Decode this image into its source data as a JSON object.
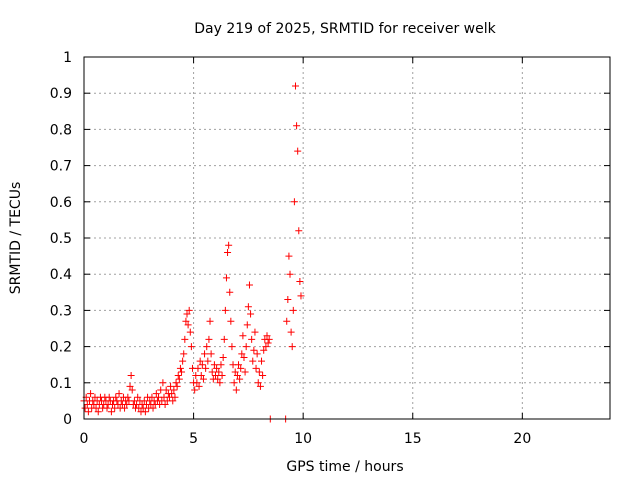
{
  "chart_data": {
    "type": "scatter",
    "title": "Day 219 of 2025, SRMTID for receiver welk",
    "xlabel": "GPS time / hours",
    "ylabel": "SRMTID / TECUs",
    "xlim": [
      0,
      24
    ],
    "ylim": [
      0,
      1
    ],
    "xticks": [
      "0",
      "5",
      "10",
      "15",
      "20"
    ],
    "yticks": [
      "0",
      "0.1",
      "0.2",
      "0.3",
      "0.4",
      "0.5",
      "0.6",
      "0.7",
      "0.8",
      "0.9",
      "1"
    ],
    "grid": true,
    "marker": "+",
    "colors": {
      "series": "#ff0000"
    },
    "series": [
      {
        "points": [
          [
            0.0,
            0.05
          ],
          [
            0.05,
            0.03
          ],
          [
            0.1,
            0.06
          ],
          [
            0.15,
            0.04
          ],
          [
            0.2,
            0.02
          ],
          [
            0.25,
            0.05
          ],
          [
            0.3,
            0.07
          ],
          [
            0.35,
            0.03
          ],
          [
            0.4,
            0.05
          ],
          [
            0.45,
            0.04
          ],
          [
            0.5,
            0.06
          ],
          [
            0.55,
            0.03
          ],
          [
            0.6,
            0.05
          ],
          [
            0.65,
            0.02
          ],
          [
            0.7,
            0.04
          ],
          [
            0.75,
            0.06
          ],
          [
            0.8,
            0.05
          ],
          [
            0.85,
            0.03
          ],
          [
            0.9,
            0.04
          ],
          [
            0.95,
            0.06
          ],
          [
            1.0,
            0.05
          ],
          [
            1.05,
            0.03
          ],
          [
            1.1,
            0.04
          ],
          [
            1.15,
            0.06
          ],
          [
            1.2,
            0.05
          ],
          [
            1.25,
            0.02
          ],
          [
            1.3,
            0.04
          ],
          [
            1.35,
            0.05
          ],
          [
            1.4,
            0.03
          ],
          [
            1.45,
            0.06
          ],
          [
            1.5,
            0.05
          ],
          [
            1.55,
            0.04
          ],
          [
            1.6,
            0.07
          ],
          [
            1.65,
            0.03
          ],
          [
            1.7,
            0.05
          ],
          [
            1.75,
            0.04
          ],
          [
            1.8,
            0.06
          ],
          [
            1.85,
            0.03
          ],
          [
            1.9,
            0.05
          ],
          [
            1.95,
            0.04
          ],
          [
            2.0,
            0.06
          ],
          [
            2.05,
            0.05
          ],
          [
            2.1,
            0.09
          ],
          [
            2.15,
            0.12
          ],
          [
            2.2,
            0.08
          ],
          [
            2.25,
            0.04
          ],
          [
            2.3,
            0.05
          ],
          [
            2.35,
            0.03
          ],
          [
            2.4,
            0.04
          ],
          [
            2.45,
            0.06
          ],
          [
            2.5,
            0.03
          ],
          [
            2.55,
            0.05
          ],
          [
            2.6,
            0.02
          ],
          [
            2.65,
            0.04
          ],
          [
            2.7,
            0.03
          ],
          [
            2.75,
            0.05
          ],
          [
            2.8,
            0.02
          ],
          [
            2.85,
            0.04
          ],
          [
            2.9,
            0.06
          ],
          [
            2.95,
            0.03
          ],
          [
            3.0,
            0.05
          ],
          [
            3.05,
            0.04
          ],
          [
            3.1,
            0.06
          ],
          [
            3.15,
            0.03
          ],
          [
            3.2,
            0.05
          ],
          [
            3.25,
            0.04
          ],
          [
            3.3,
            0.07
          ],
          [
            3.35,
            0.05
          ],
          [
            3.4,
            0.06
          ],
          [
            3.45,
            0.04
          ],
          [
            3.5,
            0.08
          ],
          [
            3.55,
            0.05
          ],
          [
            3.6,
            0.1
          ],
          [
            3.65,
            0.06
          ],
          [
            3.7,
            0.04
          ],
          [
            3.75,
            0.08
          ],
          [
            3.8,
            0.05
          ],
          [
            3.85,
            0.07
          ],
          [
            3.9,
            0.06
          ],
          [
            3.95,
            0.09
          ],
          [
            4.0,
            0.07
          ],
          [
            4.05,
            0.05
          ],
          [
            4.1,
            0.08
          ],
          [
            4.15,
            0.06
          ],
          [
            4.2,
            0.1
          ],
          [
            4.25,
            0.09
          ],
          [
            4.3,
            0.12
          ],
          [
            4.35,
            0.11
          ],
          [
            4.4,
            0.14
          ],
          [
            4.45,
            0.13
          ],
          [
            4.5,
            0.16
          ],
          [
            4.55,
            0.18
          ],
          [
            4.6,
            0.22
          ],
          [
            4.65,
            0.27
          ],
          [
            4.7,
            0.29
          ],
          [
            4.75,
            0.26
          ],
          [
            4.8,
            0.3
          ],
          [
            4.85,
            0.24
          ],
          [
            4.9,
            0.2
          ],
          [
            4.95,
            0.14
          ],
          [
            5.0,
            0.1
          ],
          [
            5.05,
            0.08
          ],
          [
            5.1,
            0.12
          ],
          [
            5.15,
            0.1
          ],
          [
            5.2,
            0.14
          ],
          [
            5.25,
            0.09
          ],
          [
            5.3,
            0.16
          ],
          [
            5.35,
            0.12
          ],
          [
            5.4,
            0.15
          ],
          [
            5.45,
            0.11
          ],
          [
            5.5,
            0.18
          ],
          [
            5.55,
            0.14
          ],
          [
            5.6,
            0.2
          ],
          [
            5.65,
            0.16
          ],
          [
            5.7,
            0.22
          ],
          [
            5.75,
            0.27
          ],
          [
            5.8,
            0.18
          ],
          [
            5.85,
            0.13
          ],
          [
            5.9,
            0.11
          ],
          [
            5.95,
            0.15
          ],
          [
            6.0,
            0.12
          ],
          [
            6.05,
            0.14
          ],
          [
            6.1,
            0.11
          ],
          [
            6.15,
            0.13
          ],
          [
            6.2,
            0.1
          ],
          [
            6.25,
            0.15
          ],
          [
            6.3,
            0.12
          ],
          [
            6.35,
            0.17
          ],
          [
            6.4,
            0.22
          ],
          [
            6.45,
            0.3
          ],
          [
            6.5,
            0.39
          ],
          [
            6.55,
            0.46
          ],
          [
            6.6,
            0.48
          ],
          [
            6.65,
            0.35
          ],
          [
            6.7,
            0.27
          ],
          [
            6.75,
            0.2
          ],
          [
            6.8,
            0.15
          ],
          [
            6.85,
            0.1
          ],
          [
            6.9,
            0.13
          ],
          [
            6.95,
            0.08
          ],
          [
            7.0,
            0.12
          ],
          [
            7.05,
            0.15
          ],
          [
            7.1,
            0.11
          ],
          [
            7.15,
            0.14
          ],
          [
            7.2,
            0.18
          ],
          [
            7.25,
            0.23
          ],
          [
            7.3,
            0.17
          ],
          [
            7.35,
            0.13
          ],
          [
            7.4,
            0.2
          ],
          [
            7.45,
            0.26
          ],
          [
            7.5,
            0.31
          ],
          [
            7.55,
            0.37
          ],
          [
            7.6,
            0.29
          ],
          [
            7.65,
            0.22
          ],
          [
            7.7,
            0.16
          ],
          [
            7.75,
            0.19
          ],
          [
            7.8,
            0.24
          ],
          [
            7.85,
            0.14
          ],
          [
            7.9,
            0.18
          ],
          [
            7.95,
            0.1
          ],
          [
            8.0,
            0.13
          ],
          [
            8.05,
            0.09
          ],
          [
            8.1,
            0.16
          ],
          [
            8.15,
            0.12
          ],
          [
            8.2,
            0.19
          ],
          [
            8.25,
            0.22
          ],
          [
            8.3,
            0.2
          ],
          [
            8.35,
            0.23
          ],
          [
            8.4,
            0.21
          ],
          [
            8.45,
            0.22
          ],
          [
            8.5,
            0.0
          ],
          [
            9.2,
            0.0
          ],
          [
            9.25,
            0.27
          ],
          [
            9.3,
            0.33
          ],
          [
            9.35,
            0.45
          ],
          [
            9.4,
            0.4
          ],
          [
            9.45,
            0.24
          ],
          [
            9.5,
            0.2
          ],
          [
            9.55,
            0.3
          ],
          [
            9.6,
            0.6
          ],
          [
            9.65,
            0.92
          ],
          [
            9.7,
            0.81
          ],
          [
            9.75,
            0.74
          ],
          [
            9.8,
            0.52
          ],
          [
            9.85,
            0.38
          ],
          [
            9.9,
            0.34
          ]
        ]
      }
    ]
  }
}
